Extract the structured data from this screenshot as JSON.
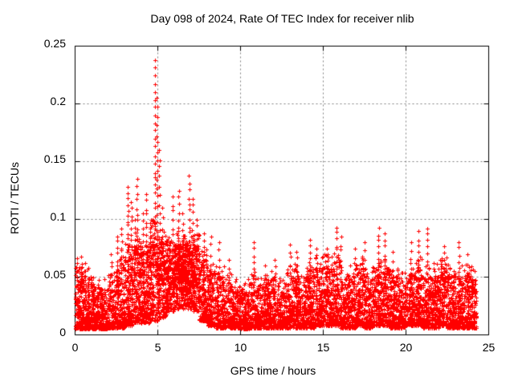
{
  "page": {
    "background": "#ffffff"
  },
  "chart_data": {
    "type": "scatter",
    "title": "Day 098 of 2024, Rate Of TEC Index for receiver nlib",
    "xlabel": "GPS time / hours",
    "ylabel": "ROTI / TECUs",
    "xlim": [
      0,
      25
    ],
    "ylim": [
      0,
      0.25
    ],
    "xticks": [
      0,
      5,
      10,
      15,
      20,
      25
    ],
    "xtick_labels": [
      "0",
      "5",
      "10",
      "15",
      "20",
      "25"
    ],
    "yticks": [
      0,
      0.05,
      0.1,
      0.15,
      0.2,
      0.25
    ],
    "ytick_labels": [
      "0",
      "0.05",
      "0.1",
      "0.15",
      "0.2",
      "0.25"
    ],
    "legend": null,
    "grid": {
      "enabled": true,
      "color": "#808080",
      "dash": [
        2,
        3
      ]
    },
    "axis_color": "#000000",
    "text_color": "#000000",
    "background": "#ffffff",
    "marker": {
      "shape": "plus",
      "color": "#ff0000",
      "size": 5
    },
    "x_data_start": 0.0,
    "x_data_end": 24.25,
    "peak_point": {
      "x": 4.85,
      "y": 0.238
    },
    "seed": 42,
    "band_bin_format": [
      "t_start_hours",
      "roti_min",
      "roti_max",
      "point_count",
      "skew_exponent"
    ],
    "band_bins": [
      [
        0.0,
        0.005,
        0.055,
        150,
        1.9
      ],
      [
        0.5,
        0.005,
        0.05,
        150,
        1.9
      ],
      [
        1.0,
        0.005,
        0.042,
        150,
        2.0
      ],
      [
        1.5,
        0.005,
        0.04,
        150,
        2.0
      ],
      [
        2.0,
        0.006,
        0.045,
        150,
        1.9
      ],
      [
        2.5,
        0.006,
        0.058,
        150,
        1.7
      ],
      [
        3.0,
        0.008,
        0.07,
        160,
        1.5
      ],
      [
        3.5,
        0.01,
        0.08,
        170,
        1.4
      ],
      [
        4.0,
        0.01,
        0.075,
        170,
        1.4
      ],
      [
        4.5,
        0.012,
        0.09,
        170,
        1.3
      ],
      [
        5.0,
        0.015,
        0.08,
        170,
        1.3
      ],
      [
        5.5,
        0.02,
        0.075,
        190,
        1.1
      ],
      [
        6.0,
        0.022,
        0.078,
        200,
        1.0
      ],
      [
        6.5,
        0.022,
        0.08,
        200,
        1.0
      ],
      [
        7.0,
        0.02,
        0.078,
        200,
        1.0
      ],
      [
        7.5,
        0.012,
        0.065,
        160,
        1.4
      ],
      [
        8.0,
        0.008,
        0.055,
        150,
        1.6
      ],
      [
        8.5,
        0.006,
        0.05,
        150,
        1.8
      ],
      [
        9.0,
        0.006,
        0.045,
        140,
        1.9
      ],
      [
        9.5,
        0.006,
        0.042,
        140,
        1.9
      ],
      [
        10.0,
        0.005,
        0.04,
        140,
        1.9
      ],
      [
        10.5,
        0.006,
        0.045,
        140,
        1.9
      ],
      [
        11.0,
        0.006,
        0.045,
        140,
        1.9
      ],
      [
        11.5,
        0.006,
        0.048,
        140,
        1.8
      ],
      [
        12.0,
        0.006,
        0.042,
        140,
        1.9
      ],
      [
        12.5,
        0.006,
        0.048,
        140,
        1.8
      ],
      [
        13.0,
        0.006,
        0.052,
        150,
        1.7
      ],
      [
        13.5,
        0.006,
        0.05,
        150,
        1.7
      ],
      [
        14.0,
        0.006,
        0.056,
        150,
        1.6
      ],
      [
        14.5,
        0.008,
        0.058,
        150,
        1.6
      ],
      [
        15.0,
        0.008,
        0.06,
        150,
        1.6
      ],
      [
        15.5,
        0.008,
        0.062,
        150,
        1.6
      ],
      [
        16.0,
        0.006,
        0.05,
        150,
        1.7
      ],
      [
        16.5,
        0.006,
        0.052,
        150,
        1.7
      ],
      [
        17.0,
        0.008,
        0.058,
        150,
        1.6
      ],
      [
        17.5,
        0.006,
        0.052,
        150,
        1.7
      ],
      [
        18.0,
        0.008,
        0.06,
        150,
        1.6
      ],
      [
        18.5,
        0.008,
        0.058,
        150,
        1.6
      ],
      [
        19.0,
        0.006,
        0.05,
        150,
        1.7
      ],
      [
        19.5,
        0.006,
        0.045,
        150,
        1.8
      ],
      [
        20.0,
        0.008,
        0.055,
        150,
        1.7
      ],
      [
        20.5,
        0.008,
        0.06,
        150,
        1.6
      ],
      [
        21.0,
        0.006,
        0.05,
        150,
        1.7
      ],
      [
        21.5,
        0.006,
        0.052,
        150,
        1.7
      ],
      [
        22.0,
        0.008,
        0.058,
        150,
        1.6
      ],
      [
        22.5,
        0.006,
        0.052,
        150,
        1.7
      ],
      [
        23.0,
        0.006,
        0.05,
        150,
        1.7
      ],
      [
        23.5,
        0.006,
        0.052,
        150,
        1.7
      ],
      [
        24.0,
        0.006,
        0.048,
        75,
        1.7
      ]
    ],
    "streak_format": [
      "t_hours",
      "roti_peak",
      "point_count"
    ],
    "streaks": [
      [
        0.15,
        0.066,
        7
      ],
      [
        0.4,
        0.068,
        8
      ],
      [
        0.6,
        0.062,
        6
      ],
      [
        2.2,
        0.07,
        6
      ],
      [
        2.55,
        0.085,
        9
      ],
      [
        2.8,
        0.092,
        10
      ],
      [
        3.2,
        0.128,
        18
      ],
      [
        3.4,
        0.115,
        14
      ],
      [
        3.6,
        0.1,
        10
      ],
      [
        3.75,
        0.135,
        16
      ],
      [
        4.1,
        0.105,
        10
      ],
      [
        4.3,
        0.122,
        14
      ],
      [
        4.55,
        0.1,
        10
      ],
      [
        4.83,
        0.238,
        30
      ],
      [
        4.95,
        0.205,
        22
      ],
      [
        5.1,
        0.16,
        16
      ],
      [
        5.3,
        0.11,
        8
      ],
      [
        5.9,
        0.12,
        12
      ],
      [
        6.25,
        0.125,
        14
      ],
      [
        6.5,
        0.105,
        10
      ],
      [
        6.9,
        0.138,
        16
      ],
      [
        7.1,
        0.118,
        12
      ],
      [
        7.35,
        0.1,
        10
      ],
      [
        7.8,
        0.088,
        8
      ],
      [
        8.2,
        0.085,
        6
      ],
      [
        8.7,
        0.08,
        6
      ],
      [
        9.3,
        0.065,
        5
      ],
      [
        10.8,
        0.08,
        7
      ],
      [
        11.5,
        0.06,
        5
      ],
      [
        12.1,
        0.065,
        6
      ],
      [
        13.0,
        0.078,
        7
      ],
      [
        13.4,
        0.072,
        6
      ],
      [
        14.2,
        0.082,
        8
      ],
      [
        14.6,
        0.075,
        6
      ],
      [
        15.2,
        0.075,
        6
      ],
      [
        15.8,
        0.093,
        10
      ],
      [
        16.05,
        0.085,
        7
      ],
      [
        16.9,
        0.075,
        6
      ],
      [
        17.5,
        0.08,
        6
      ],
      [
        18.35,
        0.093,
        10
      ],
      [
        18.7,
        0.088,
        8
      ],
      [
        19.2,
        0.072,
        5
      ],
      [
        20.3,
        0.08,
        7
      ],
      [
        20.75,
        0.09,
        8
      ],
      [
        21.3,
        0.092,
        9
      ],
      [
        22.3,
        0.077,
        7
      ],
      [
        23.2,
        0.08,
        8
      ],
      [
        23.7,
        0.07,
        5
      ]
    ]
  }
}
